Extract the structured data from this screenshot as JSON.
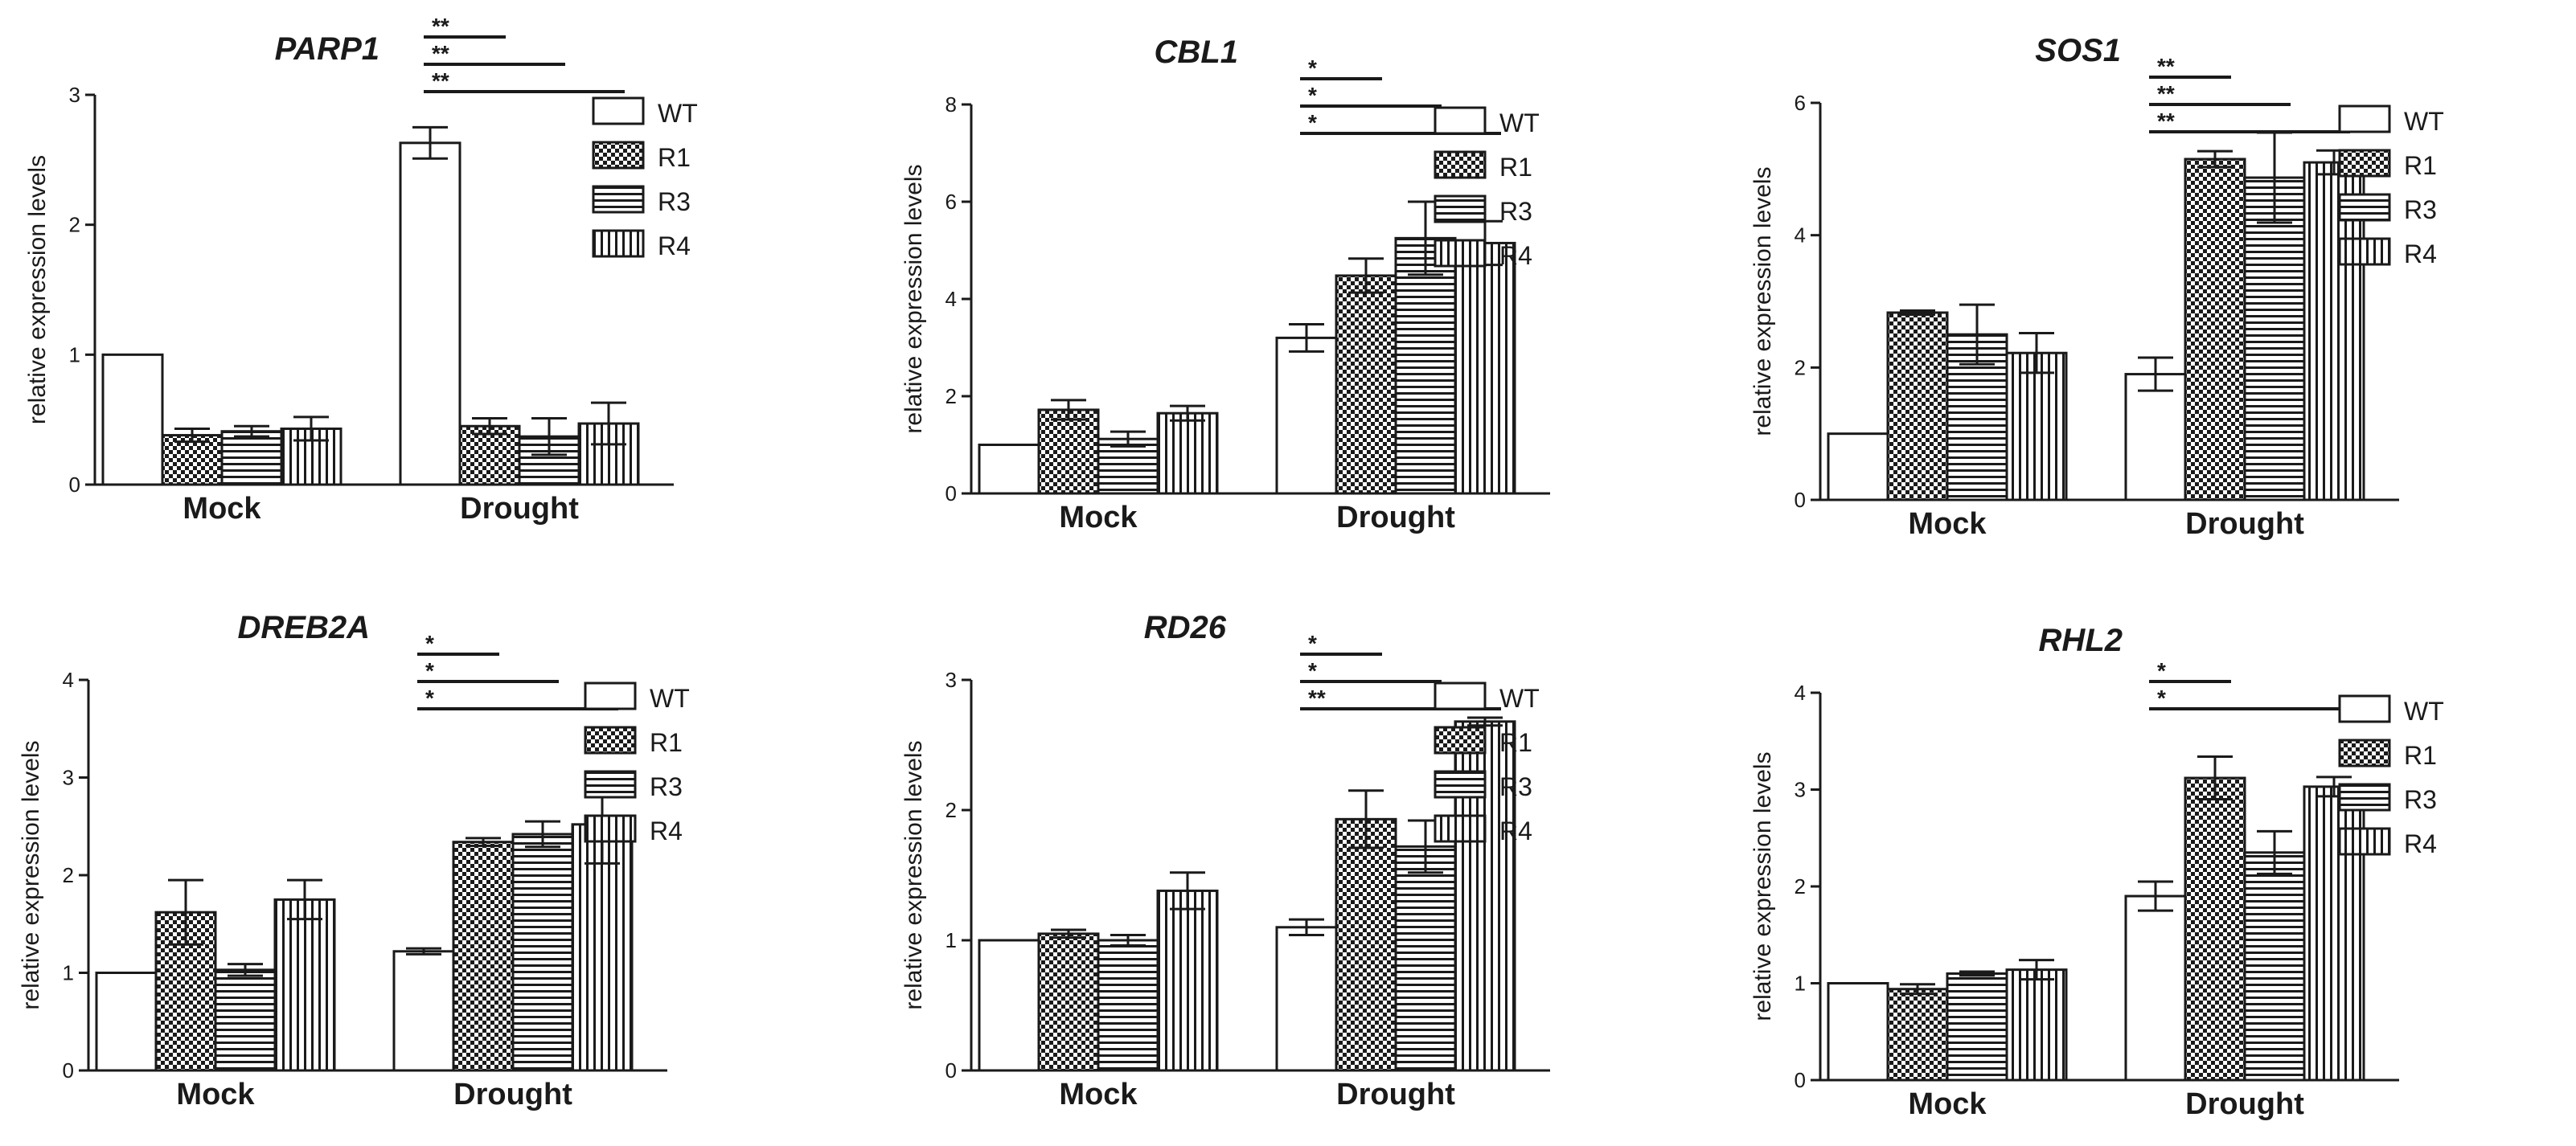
{
  "colors": {
    "ink": "#1a1a1a",
    "background": "#ffffff"
  },
  "patterns": {
    "WT": "solid-white",
    "R1": "checker",
    "R3": "horizontal-stripes",
    "R4": "vertical-stripes"
  },
  "chart_data": [
    {
      "type": "bar",
      "title": "PARP1",
      "xlabel": "",
      "ylabel": "relative expression levels",
      "categories": [
        "Mock",
        "Drought"
      ],
      "ylim": [
        0,
        3
      ],
      "yticks": [
        0,
        1,
        2,
        3
      ],
      "series": [
        {
          "name": "WT",
          "values": [
            1.0,
            2.63
          ],
          "errors": [
            0,
            0.12
          ]
        },
        {
          "name": "R1",
          "values": [
            0.38,
            0.45
          ],
          "errors": [
            0.05,
            0.06
          ]
        },
        {
          "name": "R3",
          "values": [
            0.41,
            0.37
          ],
          "errors": [
            0.04,
            0.14
          ]
        },
        {
          "name": "R4",
          "values": [
            0.43,
            0.47
          ],
          "errors": [
            0.09,
            0.16
          ]
        }
      ],
      "significance": [
        {
          "label": "**",
          "from": "WT",
          "to": "R1"
        },
        {
          "label": "**",
          "from": "WT",
          "to": "R3"
        },
        {
          "label": "**",
          "from": "WT",
          "to": "R4"
        }
      ],
      "legend": [
        "WT",
        "R1",
        "R3",
        "R4"
      ]
    },
    {
      "type": "bar",
      "title": "CBL1",
      "xlabel": "",
      "ylabel": "relative expression levels",
      "categories": [
        "Mock",
        "Drought"
      ],
      "ylim": [
        0,
        8
      ],
      "yticks": [
        0,
        2,
        4,
        6,
        8
      ],
      "series": [
        {
          "name": "WT",
          "values": [
            1.0,
            3.2
          ],
          "errors": [
            0,
            0.28
          ]
        },
        {
          "name": "R1",
          "values": [
            1.72,
            4.48
          ],
          "errors": [
            0.2,
            0.35
          ]
        },
        {
          "name": "R3",
          "values": [
            1.12,
            5.25
          ],
          "errors": [
            0.15,
            0.75
          ]
        },
        {
          "name": "R4",
          "values": [
            1.65,
            5.15
          ],
          "errors": [
            0.15,
            0.45
          ]
        }
      ],
      "significance": [
        {
          "label": "*",
          "from": "WT",
          "to": "R1"
        },
        {
          "label": "*",
          "from": "WT",
          "to": "R3"
        },
        {
          "label": "*",
          "from": "WT",
          "to": "R4"
        }
      ],
      "legend": [
        "WT",
        "R1",
        "R3",
        "R4"
      ]
    },
    {
      "type": "bar",
      "title": "SOS1",
      "xlabel": "",
      "ylabel": "relative expression levels",
      "categories": [
        "Mock",
        "Drought"
      ],
      "ylim": [
        0,
        6
      ],
      "yticks": [
        0,
        2,
        4,
        6
      ],
      "series": [
        {
          "name": "WT",
          "values": [
            1.0,
            1.9
          ],
          "errors": [
            0,
            0.25
          ]
        },
        {
          "name": "R1",
          "values": [
            2.83,
            5.15
          ],
          "errors": [
            0.03,
            0.12
          ]
        },
        {
          "name": "R3",
          "values": [
            2.5,
            4.87
          ],
          "errors": [
            0.45,
            0.68
          ]
        },
        {
          "name": "R4",
          "values": [
            2.22,
            5.1
          ],
          "errors": [
            0.3,
            0.18
          ]
        }
      ],
      "significance": [
        {
          "label": "**",
          "from": "WT",
          "to": "R1"
        },
        {
          "label": "**",
          "from": "WT",
          "to": "R3"
        },
        {
          "label": "**",
          "from": "WT",
          "to": "R4"
        }
      ],
      "legend": [
        "WT",
        "R1",
        "R3",
        "R4"
      ]
    },
    {
      "type": "bar",
      "title": "DREB2A",
      "xlabel": "",
      "ylabel": "relative expression levels",
      "categories": [
        "Mock",
        "Drought"
      ],
      "ylim": [
        0,
        4
      ],
      "yticks": [
        0,
        1,
        2,
        3,
        4
      ],
      "series": [
        {
          "name": "WT",
          "values": [
            1.0,
            1.22
          ],
          "errors": [
            0,
            0.03
          ]
        },
        {
          "name": "R1",
          "values": [
            1.62,
            2.34
          ],
          "errors": [
            0.33,
            0.04
          ]
        },
        {
          "name": "R3",
          "values": [
            1.03,
            2.42
          ],
          "errors": [
            0.06,
            0.13
          ]
        },
        {
          "name": "R4",
          "values": [
            1.75,
            2.52
          ],
          "errors": [
            0.2,
            0.4
          ]
        }
      ],
      "significance": [
        {
          "label": "*",
          "from": "WT",
          "to": "R1"
        },
        {
          "label": "*",
          "from": "WT",
          "to": "R3"
        },
        {
          "label": "*",
          "from": "WT",
          "to": "R4"
        }
      ],
      "legend": [
        "WT",
        "R1",
        "R3",
        "R4"
      ]
    },
    {
      "type": "bar",
      "title": "RD26",
      "xlabel": "",
      "ylabel": "relative expression levels",
      "categories": [
        "Mock",
        "Drought"
      ],
      "ylim": [
        0,
        3
      ],
      "yticks": [
        0,
        1,
        2,
        3
      ],
      "series": [
        {
          "name": "WT",
          "values": [
            1.0,
            1.1
          ],
          "errors": [
            0,
            0.06
          ]
        },
        {
          "name": "R1",
          "values": [
            1.05,
            1.93
          ],
          "errors": [
            0.03,
            0.22
          ]
        },
        {
          "name": "R3",
          "values": [
            1.0,
            1.72
          ],
          "errors": [
            0.04,
            0.2
          ]
        },
        {
          "name": "R4",
          "values": [
            1.38,
            2.68
          ],
          "errors": [
            0.14,
            0.03
          ]
        }
      ],
      "significance": [
        {
          "label": "*",
          "from": "WT",
          "to": "R1"
        },
        {
          "label": "*",
          "from": "WT",
          "to": "R3"
        },
        {
          "label": "**",
          "from": "WT",
          "to": "R4"
        }
      ],
      "legend": [
        "WT",
        "R1",
        "R3",
        "R4"
      ]
    },
    {
      "type": "bar",
      "title": "RHL2",
      "xlabel": "",
      "ylabel": "relative expression levels",
      "categories": [
        "Mock",
        "Drought"
      ],
      "ylim": [
        0,
        4
      ],
      "yticks": [
        0,
        1,
        2,
        3,
        4
      ],
      "series": [
        {
          "name": "WT",
          "values": [
            1.0,
            1.9
          ],
          "errors": [
            0,
            0.15
          ]
        },
        {
          "name": "R1",
          "values": [
            0.94,
            3.12
          ],
          "errors": [
            0.05,
            0.22
          ]
        },
        {
          "name": "R3",
          "values": [
            1.1,
            2.35
          ],
          "errors": [
            0.02,
            0.22
          ]
        },
        {
          "name": "R4",
          "values": [
            1.14,
            3.03
          ],
          "errors": [
            0.1,
            0.1
          ]
        }
      ],
      "significance": [
        {
          "label": "*",
          "from": "WT",
          "to": "R1"
        },
        {
          "label": "*",
          "from": "WT",
          "to": "R4"
        }
      ],
      "legend": [
        "WT",
        "R1",
        "R3",
        "R4"
      ]
    }
  ]
}
